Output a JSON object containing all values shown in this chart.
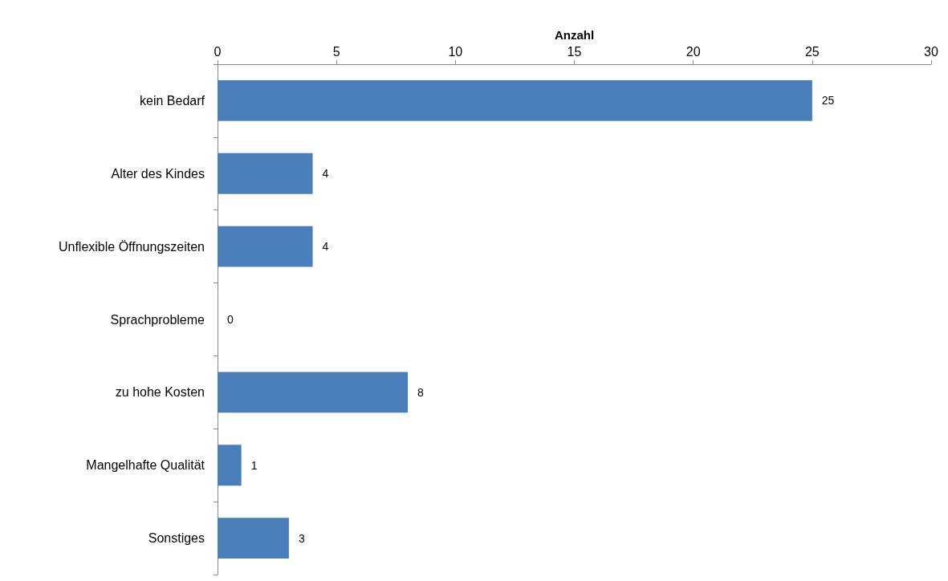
{
  "chart_data": {
    "type": "bar",
    "orientation": "horizontal",
    "xlabel": "Anzahl",
    "categories": [
      "kein Bedarf",
      "Alter des Kindes",
      "Unflexible Öffnungszeiten",
      "Sprachprobleme",
      "zu hohe Kosten",
      "Mangelhafte Qualität",
      "Sonstiges"
    ],
    "values": [
      25,
      4,
      4,
      0,
      8,
      1,
      3
    ],
    "color": "#4a7ebb",
    "xlim": [
      0,
      30
    ],
    "xticks": [
      0,
      5,
      10,
      15,
      20,
      25,
      30
    ],
    "data_labels": true,
    "grid": false
  }
}
